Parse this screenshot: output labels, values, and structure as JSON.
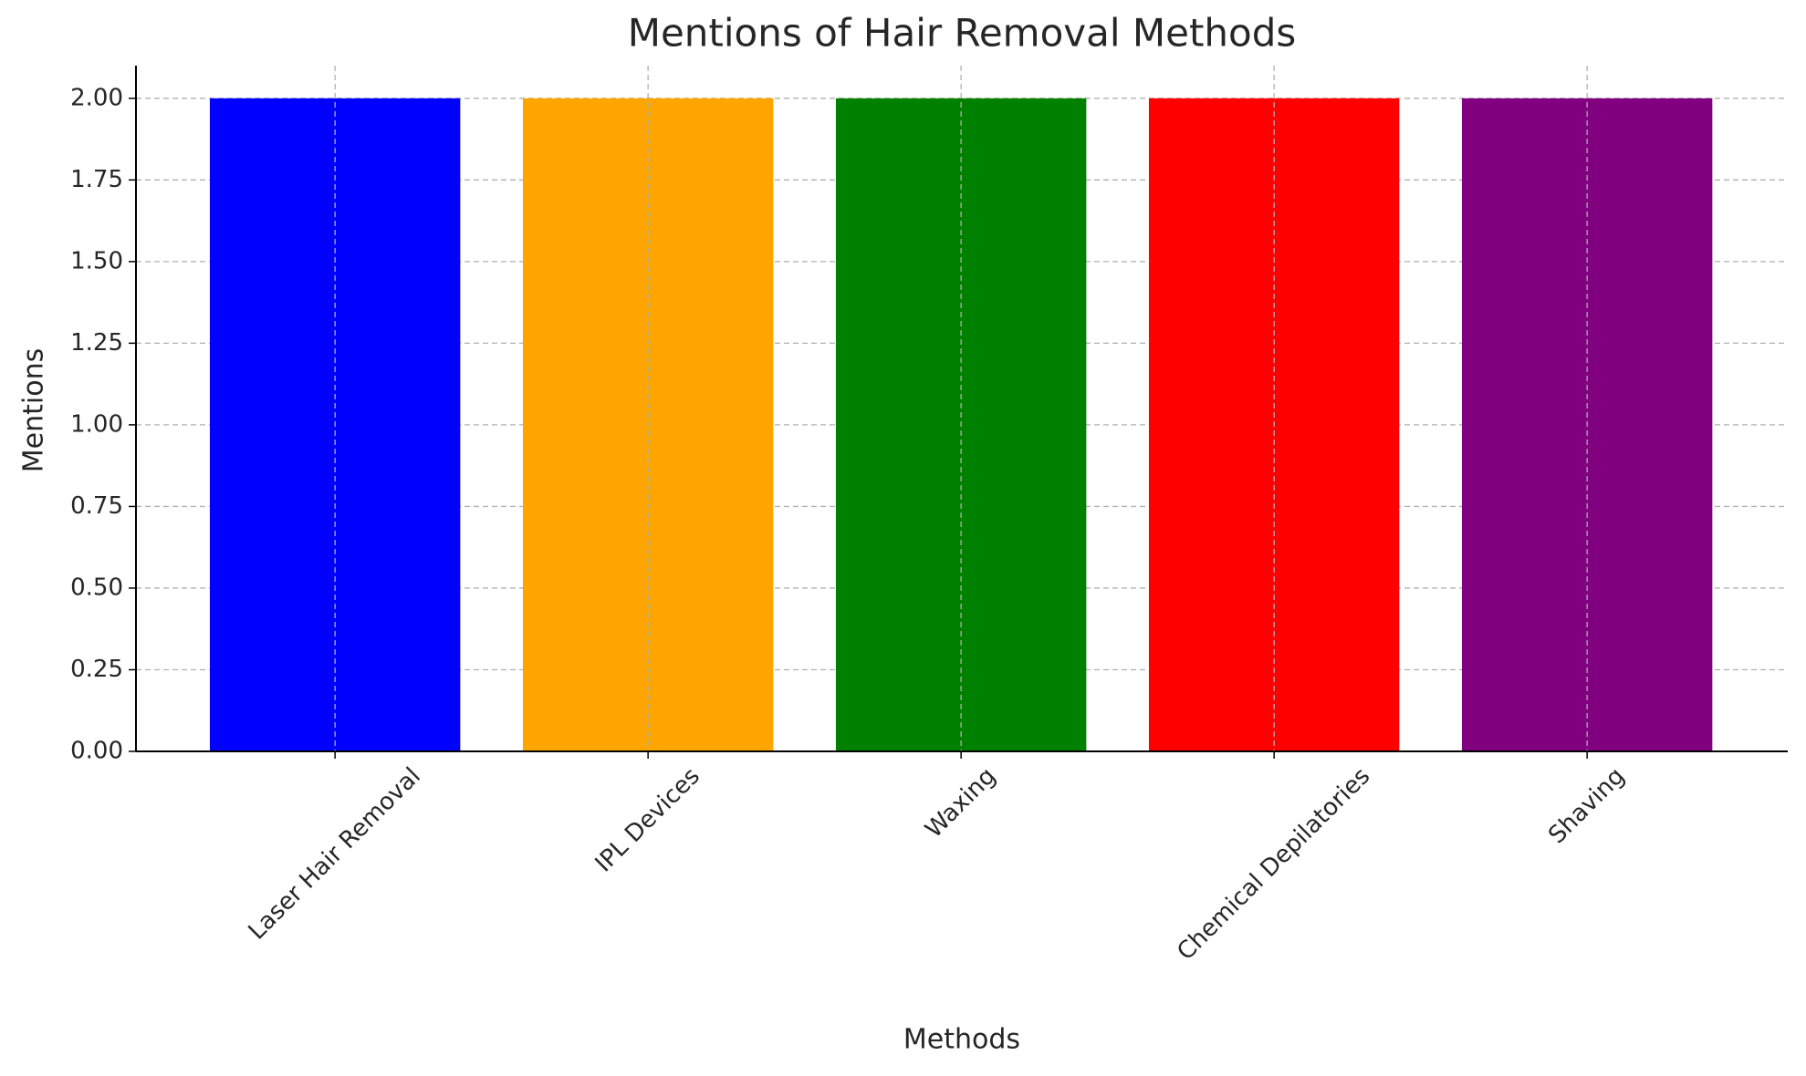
{
  "chart_data": {
    "type": "bar",
    "title": "Mentions of Hair Removal Methods",
    "x_label": "Methods",
    "y_label": "Mentions",
    "categories": [
      "Laser Hair Removal",
      "IPL Devices",
      "Waxing",
      "Chemical Depilatories",
      "Shaving"
    ],
    "values": [
      2,
      2,
      2,
      2,
      2
    ],
    "colors": [
      "#0000ff",
      "#ffa500",
      "#008000",
      "#ff0000",
      "#800080"
    ],
    "ylim": [
      0,
      2.1
    ],
    "yticks": [
      {
        "value": 0,
        "label": "0.00"
      },
      {
        "value": 0.25,
        "label": "0.25"
      },
      {
        "value": 0.5,
        "label": "0.50"
      },
      {
        "value": 0.75,
        "label": "0.75"
      },
      {
        "value": 1,
        "label": "1.00"
      },
      {
        "value": 1.25,
        "label": "1.25"
      },
      {
        "value": 1.5,
        "label": "1.50"
      },
      {
        "value": 1.75,
        "label": "1.75"
      },
      {
        "value": 2,
        "label": "2.00"
      }
    ],
    "grid": true
  }
}
